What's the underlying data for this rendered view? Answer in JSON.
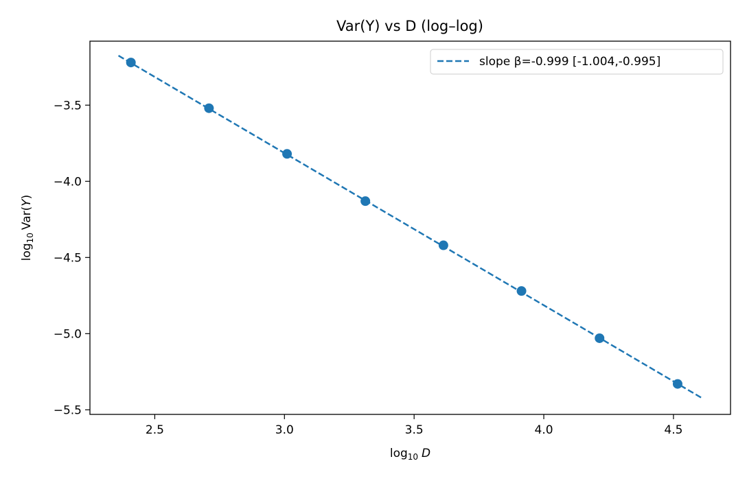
{
  "chart_data": {
    "type": "scatter",
    "title": "Var(Y) vs D (log–log)",
    "xlabel": {
      "base": "log",
      "sub": "10",
      "var": "D"
    },
    "ylabel": {
      "base": "log",
      "sub": "10",
      "rest": "Var(",
      "var": "Y",
      "close": ")"
    },
    "xlim": [
      2.25,
      4.72
    ],
    "ylim": [
      -5.53,
      -3.08
    ],
    "xticks": [
      2.5,
      3.0,
      3.5,
      4.0,
      4.5
    ],
    "xtick_labels": [
      "2.5",
      "3.0",
      "3.5",
      "4.0",
      "4.5"
    ],
    "yticks": [
      -3.5,
      -4.0,
      -4.5,
      -5.0,
      -5.5
    ],
    "ytick_labels": [
      "−3.5",
      "−4.0",
      "−4.5",
      "−5.0",
      "−5.5"
    ],
    "grid": false,
    "legend_position": "top-right",
    "series": [
      {
        "kind": "points",
        "x": [
          2.408,
          2.709,
          3.01,
          3.312,
          3.613,
          3.914,
          4.215,
          4.516
        ],
        "y": [
          -3.22,
          -3.52,
          -3.82,
          -4.13,
          -4.42,
          -4.72,
          -5.03,
          -5.33
        ],
        "color": "#1f77b4"
      },
      {
        "kind": "fit-line",
        "name": "slope β=-0.999 [-1.004,-0.995]",
        "x": [
          2.36,
          4.61
        ],
        "y": [
          -3.175,
          -5.423
        ],
        "color": "#1f77b4",
        "style": "dashed"
      }
    ]
  }
}
